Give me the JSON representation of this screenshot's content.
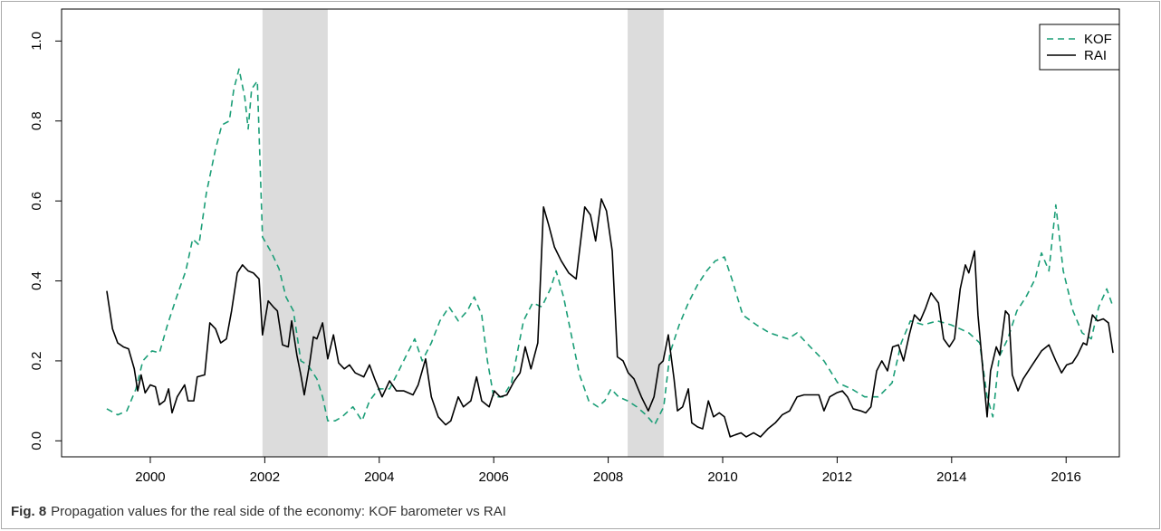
{
  "chart_data": {
    "type": "line",
    "caption_label": "Fig. 8",
    "caption": "Propagation values for the real side of the economy: KOF barometer vs RAI",
    "xlim": [
      1998.45,
      2016.93
    ],
    "ylim": [
      -0.04,
      1.08
    ],
    "xticks": [
      2000,
      2002,
      2004,
      2006,
      2008,
      2010,
      2012,
      2014,
      2016
    ],
    "yticks": [
      {
        "value": 0,
        "label": "0.0"
      },
      0.2,
      0.4,
      0.6,
      0.8,
      {
        "value": 1,
        "label": "1.0"
      }
    ],
    "shaded_regions": [
      [
        2001.96,
        2003.1
      ],
      [
        2008.34,
        2008.97
      ]
    ],
    "shade_color": "#dcdcdc",
    "legend": "top-right",
    "series": [
      {
        "name": "KOF",
        "color": "#1b9e77",
        "dashed": true,
        "x": [
          1999.24,
          1999.43,
          1999.59,
          1999.75,
          1999.87,
          2000.03,
          2000.16,
          2000.3,
          2000.46,
          2000.62,
          2000.74,
          2000.85,
          2000.98,
          2001.14,
          2001.25,
          2001.38,
          2001.46,
          2001.55,
          2001.65,
          2001.71,
          2001.77,
          2001.87,
          2001.96,
          2002.12,
          2002.25,
          2002.37,
          2002.5,
          2002.63,
          2002.75,
          2002.91,
          2003.01,
          2003.1,
          2003.23,
          2003.35,
          2003.54,
          2003.7,
          2003.83,
          2003.99,
          2004.18,
          2004.34,
          2004.46,
          2004.62,
          2004.75,
          2004.91,
          2005.06,
          2005.22,
          2005.38,
          2005.54,
          2005.66,
          2005.79,
          2005.89,
          2006.0,
          2006.16,
          2006.31,
          2006.52,
          2006.68,
          2006.84,
          2006.99,
          2007.09,
          2007.22,
          2007.37,
          2007.5,
          2007.66,
          2007.82,
          2007.94,
          2008.05,
          2008.18,
          2008.34,
          2008.5,
          2008.66,
          2008.81,
          2008.97,
          2009.08,
          2009.24,
          2009.4,
          2009.56,
          2009.72,
          2009.87,
          2010.03,
          2010.16,
          2010.35,
          2010.59,
          2010.82,
          2011.14,
          2011.3,
          2011.53,
          2011.77,
          2012.01,
          2012.25,
          2012.48,
          2012.72,
          2012.96,
          2013.12,
          2013.28,
          2013.51,
          2013.75,
          2013.99,
          2014.15,
          2014.3,
          2014.49,
          2014.62,
          2014.72,
          2014.83,
          2014.98,
          2015.14,
          2015.3,
          2015.46,
          2015.57,
          2015.7,
          2015.82,
          2015.95,
          2016.12,
          2016.28,
          2016.44,
          2016.57,
          2016.71,
          2016.82
        ],
        "values": [
          0.08,
          0.065,
          0.075,
          0.13,
          0.2,
          0.225,
          0.22,
          0.29,
          0.36,
          0.425,
          0.505,
          0.49,
          0.62,
          0.73,
          0.79,
          0.8,
          0.88,
          0.93,
          0.86,
          0.78,
          0.88,
          0.9,
          0.51,
          0.47,
          0.43,
          0.36,
          0.325,
          0.2,
          0.19,
          0.155,
          0.11,
          0.05,
          0.05,
          0.06,
          0.085,
          0.05,
          0.1,
          0.13,
          0.13,
          0.175,
          0.21,
          0.255,
          0.2,
          0.245,
          0.3,
          0.335,
          0.3,
          0.325,
          0.36,
          0.315,
          0.2,
          0.11,
          0.11,
          0.145,
          0.3,
          0.345,
          0.335,
          0.38,
          0.425,
          0.36,
          0.255,
          0.165,
          0.1,
          0.085,
          0.1,
          0.13,
          0.11,
          0.1,
          0.085,
          0.065,
          0.04,
          0.085,
          0.22,
          0.29,
          0.345,
          0.39,
          0.425,
          0.45,
          0.46,
          0.405,
          0.315,
          0.29,
          0.27,
          0.255,
          0.27,
          0.235,
          0.2,
          0.145,
          0.13,
          0.11,
          0.11,
          0.145,
          0.245,
          0.3,
          0.29,
          0.3,
          0.29,
          0.28,
          0.27,
          0.245,
          0.11,
          0.06,
          0.21,
          0.255,
          0.325,
          0.36,
          0.405,
          0.47,
          0.425,
          0.59,
          0.425,
          0.325,
          0.27,
          0.255,
          0.335,
          0.38,
          0.335
        ]
      },
      {
        "name": "RAI",
        "color": "#000000",
        "dashed": false,
        "x": [
          1999.24,
          1999.34,
          1999.43,
          1999.53,
          1999.62,
          1999.72,
          1999.78,
          1999.84,
          1999.91,
          2000.0,
          2000.09,
          2000.16,
          2000.25,
          2000.32,
          2000.38,
          2000.47,
          2000.6,
          2000.66,
          2000.76,
          2000.82,
          2000.95,
          2001.04,
          2001.14,
          2001.23,
          2001.33,
          2001.42,
          2001.52,
          2001.61,
          2001.71,
          2001.8,
          2001.9,
          2001.96,
          2002.06,
          2002.15,
          2002.22,
          2002.31,
          2002.41,
          2002.47,
          2002.56,
          2002.63,
          2002.69,
          2002.78,
          2002.85,
          2002.91,
          2003.01,
          2003.1,
          2003.2,
          2003.29,
          2003.39,
          2003.48,
          2003.58,
          2003.73,
          2003.83,
          2003.92,
          2004.05,
          2004.18,
          2004.3,
          2004.43,
          2004.59,
          2004.68,
          2004.81,
          2004.91,
          2005.03,
          2005.16,
          2005.25,
          2005.38,
          2005.47,
          2005.6,
          2005.7,
          2005.79,
          2005.92,
          2006.01,
          2006.11,
          2006.23,
          2006.36,
          2006.46,
          2006.55,
          2006.65,
          2006.77,
          2006.87,
          2006.96,
          2007.06,
          2007.18,
          2007.31,
          2007.44,
          2007.59,
          2007.69,
          2007.78,
          2007.88,
          2007.97,
          2008.07,
          2008.16,
          2008.26,
          2008.35,
          2008.45,
          2008.58,
          2008.7,
          2008.8,
          2008.89,
          2008.96,
          2009.05,
          2009.15,
          2009.21,
          2009.3,
          2009.4,
          2009.46,
          2009.56,
          2009.65,
          2009.75,
          2009.84,
          2009.94,
          2010.03,
          2010.13,
          2010.22,
          2010.32,
          2010.41,
          2010.54,
          2010.66,
          2010.79,
          2010.92,
          2011.04,
          2011.17,
          2011.3,
          2011.42,
          2011.55,
          2011.68,
          2011.77,
          2011.87,
          2011.99,
          2012.09,
          2012.18,
          2012.28,
          2012.41,
          2012.5,
          2012.59,
          2012.69,
          2012.78,
          2012.88,
          2012.97,
          2013.07,
          2013.16,
          2013.26,
          2013.35,
          2013.45,
          2013.54,
          2013.64,
          2013.77,
          2013.86,
          2013.96,
          2014.05,
          2014.15,
          2014.24,
          2014.3,
          2014.4,
          2014.46,
          2014.56,
          2014.62,
          2014.68,
          2014.78,
          2014.84,
          2014.94,
          2015.0,
          2015.06,
          2015.16,
          2015.25,
          2015.41,
          2015.57,
          2015.7,
          2015.82,
          2015.92,
          2016.01,
          2016.11,
          2016.2,
          2016.3,
          2016.36,
          2016.46,
          2016.55,
          2016.65,
          2016.74,
          2016.82
        ],
        "values": [
          0.375,
          0.28,
          0.245,
          0.235,
          0.23,
          0.18,
          0.125,
          0.165,
          0.12,
          0.14,
          0.135,
          0.09,
          0.1,
          0.13,
          0.07,
          0.11,
          0.14,
          0.1,
          0.1,
          0.16,
          0.165,
          0.295,
          0.28,
          0.245,
          0.255,
          0.325,
          0.42,
          0.44,
          0.425,
          0.42,
          0.405,
          0.265,
          0.35,
          0.335,
          0.325,
          0.24,
          0.235,
          0.3,
          0.215,
          0.165,
          0.115,
          0.19,
          0.26,
          0.255,
          0.295,
          0.205,
          0.265,
          0.195,
          0.18,
          0.19,
          0.17,
          0.16,
          0.19,
          0.155,
          0.11,
          0.15,
          0.125,
          0.125,
          0.115,
          0.14,
          0.205,
          0.11,
          0.06,
          0.04,
          0.05,
          0.11,
          0.085,
          0.1,
          0.16,
          0.1,
          0.085,
          0.125,
          0.11,
          0.115,
          0.15,
          0.17,
          0.235,
          0.18,
          0.245,
          0.585,
          0.54,
          0.485,
          0.45,
          0.42,
          0.405,
          0.585,
          0.565,
          0.5,
          0.605,
          0.575,
          0.475,
          0.21,
          0.2,
          0.17,
          0.155,
          0.11,
          0.075,
          0.11,
          0.19,
          0.2,
          0.265,
          0.155,
          0.075,
          0.085,
          0.13,
          0.045,
          0.035,
          0.03,
          0.1,
          0.06,
          0.07,
          0.06,
          0.01,
          0.015,
          0.02,
          0.01,
          0.02,
          0.01,
          0.03,
          0.045,
          0.065,
          0.075,
          0.11,
          0.115,
          0.115,
          0.115,
          0.075,
          0.11,
          0.12,
          0.125,
          0.11,
          0.08,
          0.075,
          0.07,
          0.085,
          0.175,
          0.2,
          0.175,
          0.235,
          0.24,
          0.2,
          0.265,
          0.315,
          0.3,
          0.33,
          0.37,
          0.345,
          0.255,
          0.235,
          0.255,
          0.38,
          0.44,
          0.42,
          0.475,
          0.315,
          0.155,
          0.06,
          0.175,
          0.235,
          0.215,
          0.325,
          0.315,
          0.165,
          0.125,
          0.155,
          0.19,
          0.225,
          0.24,
          0.2,
          0.17,
          0.19,
          0.195,
          0.215,
          0.245,
          0.24,
          0.315,
          0.3,
          0.305,
          0.295,
          0.22
        ]
      }
    ]
  }
}
